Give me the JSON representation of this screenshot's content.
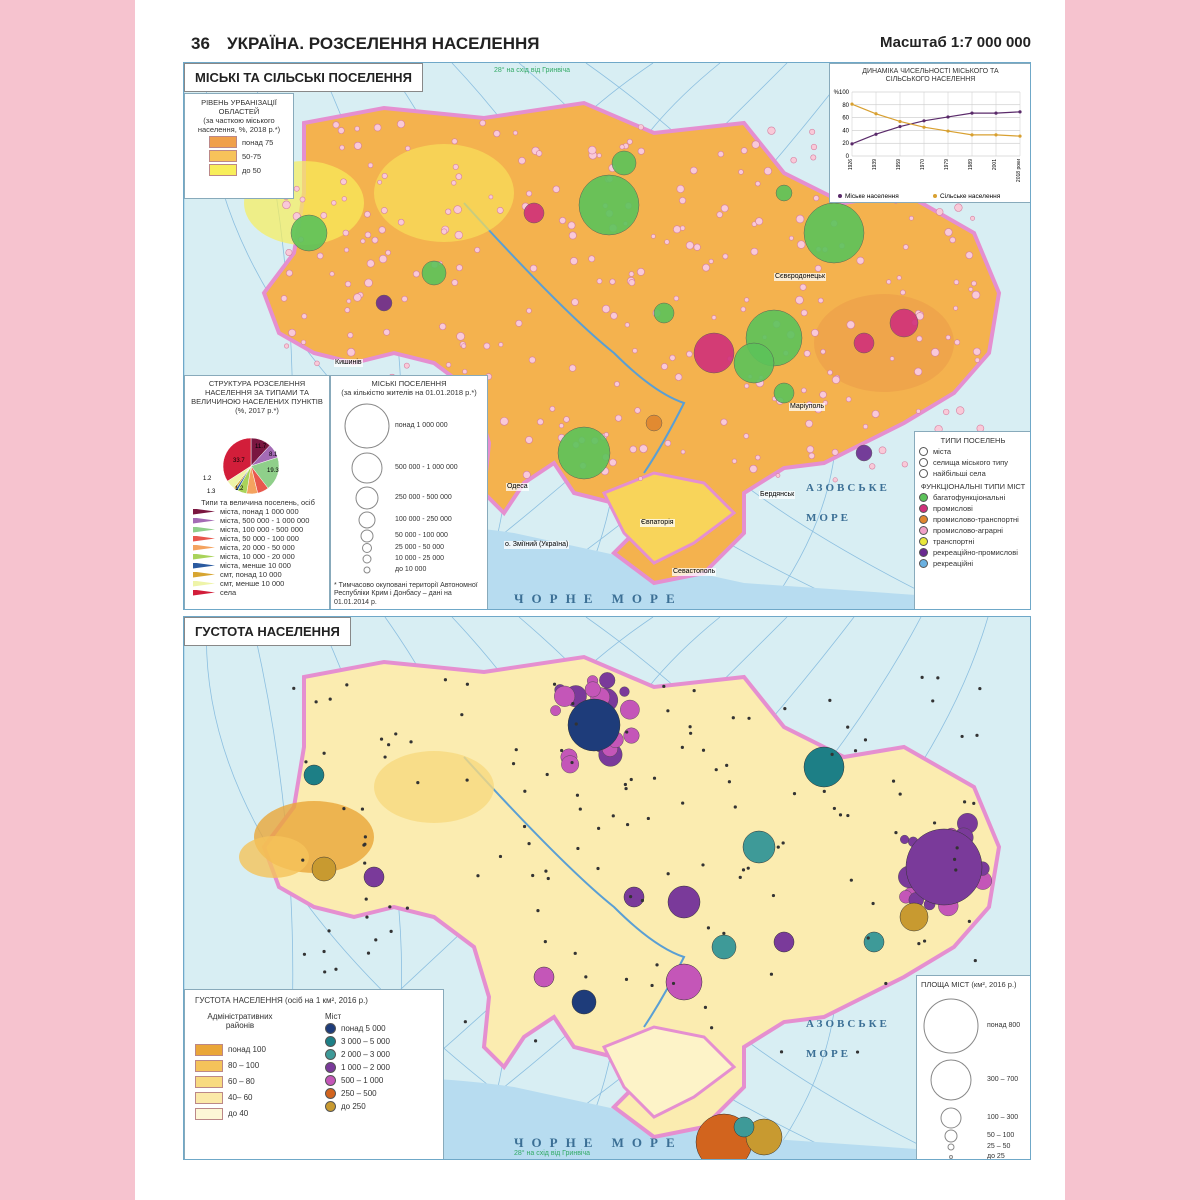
{
  "header": {
    "page_number": "36",
    "title": "УКРАЇНА. РОЗСЕЛЕННЯ НАСЕЛЕННЯ",
    "scale": "Масштаб 1:7 000 000"
  },
  "top_map": {
    "title": "МІСЬКІ ТА СІЛЬСЬКІ ПОСЕЛЕННЯ",
    "meridian_label": "28° на схід від Гринвіча",
    "urbanization_legend": {
      "title": "РІВЕНЬ УРБАНІЗАЦІЇ ОБЛАСТЕЙ",
      "subtitle": "(за часткою міського населення, %, 2018 р.*)",
      "items": [
        {
          "label": "понад 75",
          "color": "#f0a04a"
        },
        {
          "label": "50-75",
          "color": "#f7c35a"
        },
        {
          "label": "до 50",
          "color": "#f8ee5a"
        }
      ]
    },
    "structure_legend": {
      "title": "СТРУКТУРА РОЗСЕЛЕННЯ НАСЕЛЕННЯ ЗА ТИПАМИ ТА ВЕЛИЧИНОЮ НАСЕЛЕНИХ ПУНКТІВ",
      "subtitle": "(%, 2017 р.*)",
      "types_title": "Типи та величина поселень, осіб",
      "items": [
        {
          "label": "міста, понад 1 000 000",
          "color": "#7a1640"
        },
        {
          "label": "міста, 500 000 - 1 000 000",
          "color": "#a46bb5"
        },
        {
          "label": "міста, 100 000 - 500 000",
          "color": "#8fcf8a"
        },
        {
          "label": "міста, 50 000 - 100 000",
          "color": "#e8574d"
        },
        {
          "label": "міста, 20 000 - 50 000",
          "color": "#f4a35f"
        },
        {
          "label": "міста, 10 000 - 20 000",
          "color": "#a9d35a"
        },
        {
          "label": "міста, менше 10 000",
          "color": "#2a5aa0"
        },
        {
          "label": "смт, понад 10 000",
          "color": "#d7a531"
        },
        {
          "label": "смт, менше 10 000",
          "color": "#eef4a8"
        },
        {
          "label": "села",
          "color": "#d21e3a"
        }
      ]
    },
    "pie_labels": [
      "33.7",
      "11.7",
      "8.1",
      "19.3",
      "1.2",
      "1.2",
      "1.3"
    ],
    "pie_values": [
      {
        "label": "міста, понад 1 000 000",
        "value": 11.7
      },
      {
        "label": "міста, 500 000 - 1 000 000",
        "value": 8.1
      },
      {
        "label": "міста, 100 000 - 500 000",
        "value": 19.3
      },
      {
        "label": "міста, 50 000 - 100 000",
        "value": 6.5
      },
      {
        "label": "міста, 20 000 - 50 000",
        "value": 6.3
      },
      {
        "label": "міста, 10 000 - 20 000",
        "value": 5.4
      },
      {
        "label": "міста, менше 10 000",
        "value": 1.3
      },
      {
        "label": "смт, понад 10 000",
        "value": 1.2
      },
      {
        "label": "смт, менше 10 000",
        "value": 5.3
      },
      {
        "label": "села",
        "value": 33.7
      }
    ],
    "cities_legend": {
      "title": "МІСЬКІ ПОСЕЛЕННЯ",
      "subtitle": "(за кількістю жителів на 01.01.2018 р.*)",
      "items": [
        "понад 1 000 000",
        "500 000 - 1 000 000",
        "250 000 - 500 000",
        "100 000 - 250 000",
        "50 000 - 100 000",
        "25 000 - 50 000",
        "10 000 - 25 000",
        "до 10 000"
      ],
      "footnote": "* Тимчасово окуповані території Автономної Республіки Крим і Донбасу – дані на 01.01.2014 р."
    },
    "types_legend": {
      "title": "ТИПИ ПОСЕЛЕНЬ",
      "items": [
        "міста",
        "селища міського типу",
        "найбільші села"
      ],
      "functional_title": "ФУНКЦІОНАЛЬНІ ТИПИ МІСТ",
      "functional": [
        {
          "label": "багатофункціональні",
          "color": "#5cc35a"
        },
        {
          "label": "промислові",
          "color": "#d0307a"
        },
        {
          "label": "промислово-транспортні",
          "color": "#e0862e"
        },
        {
          "label": "промислово-аграрні",
          "color": "#f0a0c8"
        },
        {
          "label": "транспортні",
          "color": "#e8e83a"
        },
        {
          "label": "рекреаційно-промислові",
          "color": "#6a2a90"
        },
        {
          "label": "рекреаційні",
          "color": "#6ab0e0"
        }
      ]
    },
    "sea_labels": {
      "black": "ЧОРНЕ МОРЕ",
      "azov": "АЗОВСЬКЕ МОРЕ"
    },
    "place_labels": [
      "Кишинів",
      "Одеса",
      "Бердянськ",
      "Маріуполь",
      "Євпаторія",
      "Севастополь",
      "о. Зміїний (Україна)",
      "Сєвєродонецьк"
    ]
  },
  "chart_data": {
    "type": "line",
    "title": "ДИНАМІКА ЧИСЕЛЬНОСТІ МІСЬКОГО ТА СІЛЬСЬКОГО НАСЕЛЕННЯ",
    "ylabel": "%",
    "ylim": [
      0,
      100
    ],
    "yticks": [
      0,
      20,
      40,
      60,
      80,
      100
    ],
    "categories": [
      "1926",
      "1939",
      "1959",
      "1970",
      "1979",
      "1989",
      "2001",
      "2018 роки"
    ],
    "series": [
      {
        "name": "Міське населення",
        "color": "#5a2a6a",
        "values": [
          19,
          34,
          46,
          55,
          61,
          67,
          67,
          69
        ]
      },
      {
        "name": "Сільське населення",
        "color": "#d8a030",
        "values": [
          81,
          66,
          54,
          45,
          39,
          33,
          33,
          31
        ]
      }
    ],
    "grid": true,
    "legend": "bottom"
  },
  "bottom_map": {
    "title": "ГУСТОТА НАСЕЛЕННЯ",
    "density_legend": {
      "title": "ГУСТОТА НАСЕЛЕННЯ (осіб на 1 км², 2016 р.)",
      "districts_title": "Адміністративних районів",
      "cities_title": "Міст",
      "districts": [
        {
          "label": "понад 100",
          "color": "#eaa638"
        },
        {
          "label": "80 – 100",
          "color": "#f5c35a"
        },
        {
          "label": "60 – 80",
          "color": "#f8da80"
        },
        {
          "label": "40– 60",
          "color": "#fbe9a8"
        },
        {
          "label": "до 40",
          "color": "#fdf7d6"
        }
      ],
      "cities": [
        {
          "label": "понад 5 000",
          "color": "#1e3c7a"
        },
        {
          "label": "3 000 – 5 000",
          "color": "#1d7f86"
        },
        {
          "label": "2 000 – 3 000",
          "color": "#3e9a98"
        },
        {
          "label": "1 000 – 2 000",
          "color": "#7a3a9a"
        },
        {
          "label": "500 – 1 000",
          "color": "#c456b8"
        },
        {
          "label": "250 – 500",
          "color": "#d2641e"
        },
        {
          "label": "до 250",
          "color": "#c89a30"
        }
      ]
    },
    "area_legend": {
      "title": "ПЛОЩА МІСТ (км², 2016 р.)",
      "items": [
        "понад 800",
        "300 – 700",
        "100 – 300",
        "50 – 100",
        "25 – 50",
        "до 25"
      ]
    },
    "sea_labels": {
      "black": "ЧОРНЕ МОРЕ",
      "azov": "АЗОВСЬКЕ МОРЕ"
    },
    "meridian_label": "28° на схід від Гринвіча"
  }
}
